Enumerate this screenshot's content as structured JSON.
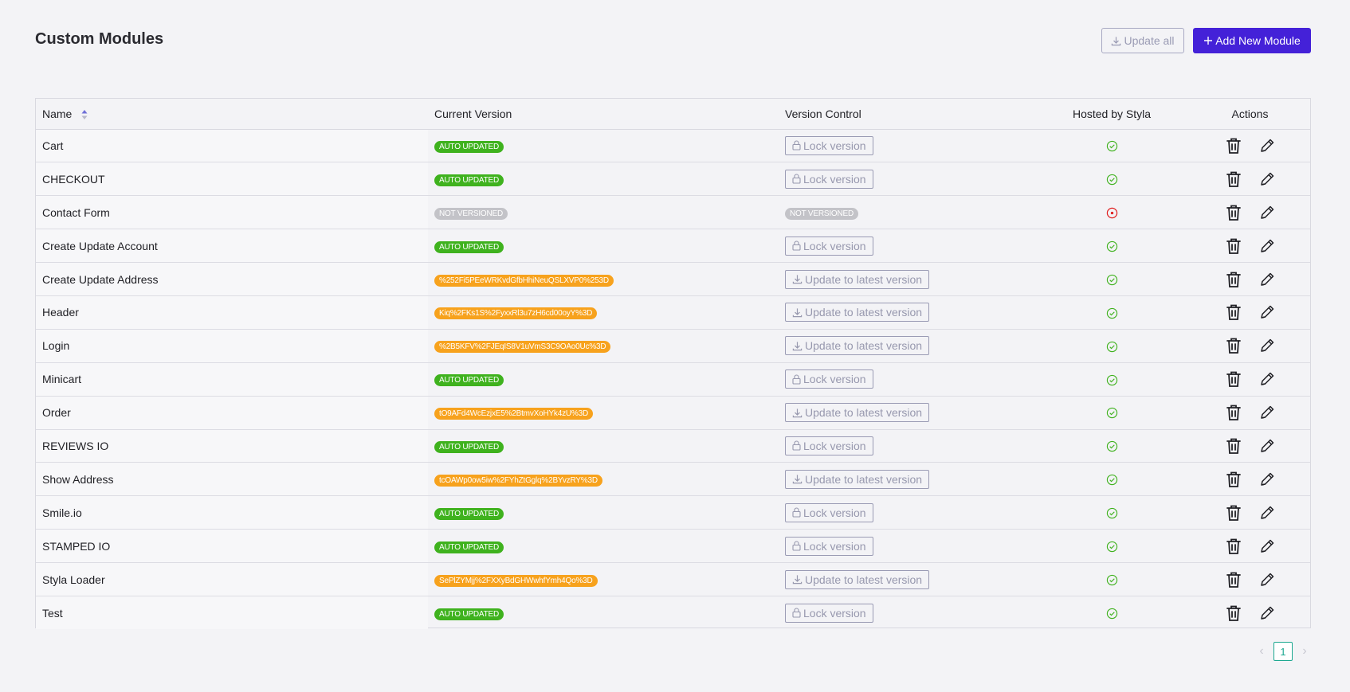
{
  "header": {
    "title": "Custom Modules",
    "update_all_label": "Update all",
    "add_new_label": "Add New Module"
  },
  "table": {
    "columns": [
      "Name",
      "Current Version",
      "Version Control",
      "Hosted by Styla",
      "Actions"
    ],
    "rows": [
      {
        "name": "Cart",
        "version": "AUTO UPDATED",
        "version_type": "auto",
        "control": "Lock version",
        "control_type": "lock",
        "hosted": true
      },
      {
        "name": "CHECKOUT",
        "version": "AUTO UPDATED",
        "version_type": "auto",
        "control": "Lock version",
        "control_type": "lock",
        "hosted": true
      },
      {
        "name": "Contact Form",
        "version": "NOT VERSIONED",
        "version_type": "none",
        "control": "NOT VERSIONED",
        "control_type": "badge",
        "hosted": false
      },
      {
        "name": "Create Update Account",
        "version": "AUTO UPDATED",
        "version_type": "auto",
        "control": "Lock version",
        "control_type": "lock",
        "hosted": true
      },
      {
        "name": "Create Update Address",
        "version": "%252Fi5PEeWRKvdGfbHhiNeuQSLXVP0%253D",
        "version_type": "hash",
        "control": "Update to latest version",
        "control_type": "update",
        "hosted": true
      },
      {
        "name": "Header",
        "version": "Kiq%2FKs1S%2FyxxRl3u7zH6cd00oyY%3D",
        "version_type": "hash",
        "control": "Update to latest version",
        "control_type": "update",
        "hosted": true
      },
      {
        "name": "Login",
        "version": "%2B5KFV%2FJEqIS8V1uVmS3C9OAo0Uc%3D",
        "version_type": "hash",
        "control": "Update to latest version",
        "control_type": "update",
        "hosted": true
      },
      {
        "name": "Minicart",
        "version": "AUTO UPDATED",
        "version_type": "auto",
        "control": "Lock version",
        "control_type": "lock",
        "hosted": true
      },
      {
        "name": "Order",
        "version": "tO9AFd4WcEzjxE5%2BtmvXoHYk4zU%3D",
        "version_type": "hash",
        "control": "Update to latest version",
        "control_type": "update",
        "hosted": true
      },
      {
        "name": "REVIEWS IO",
        "version": "AUTO UPDATED",
        "version_type": "auto",
        "control": "Lock version",
        "control_type": "lock",
        "hosted": true
      },
      {
        "name": "Show Address",
        "version": "tcOAWp0ow5iw%2FYhZtGglq%2BYvzRY%3D",
        "version_type": "hash",
        "control": "Update to latest version",
        "control_type": "update",
        "hosted": true
      },
      {
        "name": "Smile.io",
        "version": "AUTO UPDATED",
        "version_type": "auto",
        "control": "Lock version",
        "control_type": "lock",
        "hosted": true
      },
      {
        "name": "STAMPED IO",
        "version": "AUTO UPDATED",
        "version_type": "auto",
        "control": "Lock version",
        "control_type": "lock",
        "hosted": true
      },
      {
        "name": "Styla Loader",
        "version": "SePlZYMjj%2FXXyBdGHWwhfYmh4Qo%3D",
        "version_type": "hash",
        "control": "Update to latest version",
        "control_type": "update",
        "hosted": true
      },
      {
        "name": "Test",
        "version": "AUTO UPDATED",
        "version_type": "auto",
        "control": "Lock version",
        "control_type": "lock",
        "hosted": true
      }
    ]
  },
  "pagination": {
    "current_page": "1"
  },
  "icons": {
    "sort": "sort-icon",
    "download": "download-icon",
    "plus": "plus-icon",
    "lock": "lock-icon",
    "hosted_yes": "check-circle-icon",
    "hosted_no": "dot-circle-icon",
    "delete": "trash-icon",
    "edit": "pencil-icon",
    "prev": "chevron-left-icon",
    "next": "chevron-right-icon"
  },
  "colors": {
    "primary": "#4421d8",
    "auto_badge": "#3fb21e",
    "hash_badge": "#f7a21d",
    "none_badge": "#c3c3c8",
    "hosted_yes": "#3fb21e",
    "hosted_no": "#e02020",
    "page_active": "#1ca890"
  }
}
